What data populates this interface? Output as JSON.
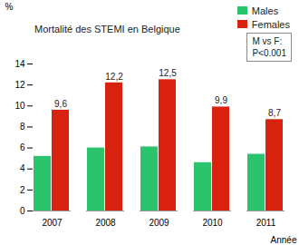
{
  "chart_data": {
    "type": "bar",
    "title": "Mortalité des STEMI en Belgique",
    "x_label": "Année",
    "y_label": "%",
    "categories": [
      "2007",
      "2008",
      "2009",
      "2010",
      "2011"
    ],
    "series": [
      {
        "name": "Males",
        "color": "#2bc46c",
        "values": [
          5.2,
          6.0,
          6.1,
          4.6,
          5.4
        ]
      },
      {
        "name": "Females",
        "color": "#d8210f",
        "values": [
          9.6,
          12.2,
          12.5,
          9.9,
          8.7
        ],
        "value_labels": [
          "9,6",
          "12,2",
          "12,5",
          "9,9",
          "8,7"
        ]
      }
    ],
    "annotations": [
      "M vs F:",
      "P<0.001"
    ],
    "ylim": [
      0,
      14
    ],
    "yticks": [
      0,
      2,
      4,
      6,
      8,
      10,
      12,
      14
    ],
    "grid": false,
    "legend": "top-right",
    "data_labels": true
  }
}
